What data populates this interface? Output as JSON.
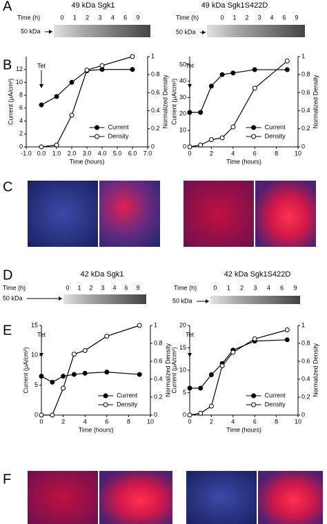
{
  "panel_labels": [
    "A",
    "B",
    "C",
    "D",
    "E",
    "F"
  ],
  "blots": [
    {
      "title": "49 kDa Sgk1",
      "time_label": "Time (h)",
      "times": [
        "0",
        "1",
        "2",
        "3",
        "4",
        "6",
        "9"
      ],
      "marker": "50 kDa"
    },
    {
      "title": "49 kDa Sgk1S422D",
      "time_label": "Time (h)",
      "times": [
        "0",
        "1",
        "2",
        "3",
        "4",
        "6",
        "9"
      ],
      "marker": "50 kDa"
    },
    {
      "title": "42 kDa Sgk1",
      "time_label": "Time (h)",
      "times": [
        "0",
        "1",
        "2",
        "3",
        "4",
        "6",
        "9"
      ],
      "marker": "50 kDa"
    },
    {
      "title": "42 kDa Sgk1S422D",
      "time_label": "Time (h)",
      "times": [
        "0",
        "1",
        "2",
        "3",
        "4",
        "6",
        "9"
      ],
      "marker": "50 kDa"
    }
  ],
  "chart_data": [
    {
      "type": "line",
      "xlabel": "Time (hours)",
      "ylabel": "Current (μA/cm²)",
      "y2label": "Normalized Density",
      "annotation": "Tet",
      "x": [
        0,
        1,
        2,
        3,
        4,
        6
      ],
      "xlim": [
        -1,
        7
      ],
      "xticks": [
        {
          "value": -1,
          "label": "-1.0"
        },
        {
          "value": 0,
          "label": "0.0"
        },
        {
          "value": 1,
          "label": "1.0"
        },
        {
          "value": 2,
          "label": "2.0"
        },
        {
          "value": 3,
          "label": "3.0"
        },
        {
          "value": 4,
          "label": "4.0"
        },
        {
          "value": 5,
          "label": "5.0"
        },
        {
          "value": 6,
          "label": "6.0"
        },
        {
          "value": 7,
          "label": "7.0"
        }
      ],
      "ylim": [
        0,
        14
      ],
      "yticks": [
        0,
        2,
        4,
        6,
        8,
        10,
        12
      ],
      "y2lim": [
        0,
        1
      ],
      "y2ticks": [
        0,
        0.2,
        0.4,
        0.6,
        0.8,
        1
      ],
      "series": [
        {
          "name": "Current",
          "color": "#000000",
          "marker": "filled",
          "values": [
            6.5,
            7.8,
            10,
            11.8,
            12,
            12
          ]
        },
        {
          "name": "Density",
          "color": "#000000",
          "marker": "open",
          "axis": "y2",
          "values": [
            0,
            0.02,
            0.35,
            0.85,
            0.9,
            1
          ]
        }
      ]
    },
    {
      "type": "line",
      "xlabel": "Time (hours)",
      "ylabel": "Current (μA/cm²)",
      "y2label": "Normalized Density",
      "annotation": "Tet",
      "x": [
        0,
        1,
        2,
        3,
        4,
        6,
        9
      ],
      "xlim": [
        0,
        10
      ],
      "xticks": [
        0,
        2,
        4,
        6,
        8,
        10
      ],
      "ylim": [
        0,
        55
      ],
      "yticks": [
        0,
        10,
        20,
        30,
        40,
        50
      ],
      "y2lim": [
        0,
        1
      ],
      "y2ticks": [
        0,
        0.2,
        0.4,
        0.6,
        0.8,
        1
      ],
      "series": [
        {
          "name": "Current",
          "color": "#000000",
          "marker": "filled",
          "values": [
            21,
            21,
            37,
            44,
            45,
            47,
            47
          ]
        },
        {
          "name": "Density",
          "color": "#000000",
          "marker": "open",
          "axis": "y2",
          "values": [
            0,
            0.02,
            0.08,
            0.1,
            0.22,
            0.65,
            0.95
          ]
        }
      ]
    },
    {
      "type": "line",
      "xlabel": "Time (hours)",
      "ylabel": "Current (μA/cm²)",
      "y2label": "Normalized Density",
      "annotation": "Tet",
      "x": [
        0,
        1,
        2,
        3,
        4,
        6,
        9
      ],
      "xlim": [
        0,
        10
      ],
      "xticks": [
        0,
        2,
        4,
        6,
        8,
        10
      ],
      "ylim": [
        0,
        15
      ],
      "yticks": [
        0,
        5,
        10,
        15
      ],
      "y2lim": [
        0,
        1
      ],
      "y2ticks": [
        0,
        0.2,
        0.4,
        0.6,
        0.8,
        1
      ],
      "series": [
        {
          "name": "Current",
          "color": "#000000",
          "marker": "filled",
          "values": [
            6.5,
            5.5,
            6.5,
            6.8,
            7,
            7.2,
            6.8
          ]
        },
        {
          "name": "Density",
          "color": "#000000",
          "marker": "open",
          "axis": "y2",
          "values": [
            0,
            0,
            0.3,
            0.68,
            0.72,
            0.88,
            1
          ]
        }
      ]
    },
    {
      "type": "line",
      "xlabel": "Time (hours)",
      "ylabel": "Current (μA/cm²)",
      "y2label": "Normalized Density",
      "annotation": "Tet",
      "x": [
        0,
        1,
        2,
        3,
        4,
        6,
        9
      ],
      "xlim": [
        0,
        10
      ],
      "xticks": [
        0,
        2,
        4,
        6,
        8,
        10
      ],
      "ylim": [
        0,
        20
      ],
      "yticks": [
        0,
        5,
        10,
        15,
        20
      ],
      "y2lim": [
        0,
        1
      ],
      "y2ticks": [
        0,
        0.2,
        0.4,
        0.6,
        0.8,
        1
      ],
      "series": [
        {
          "name": "Current",
          "color": "#000000",
          "marker": "filled",
          "values": [
            6,
            6,
            9,
            11.5,
            14.5,
            16.5,
            16.8
          ]
        },
        {
          "name": "Density",
          "color": "#000000",
          "marker": "open",
          "axis": "y2",
          "values": [
            0,
            0.02,
            0.1,
            0.55,
            0.7,
            0.85,
            0.95
          ]
        }
      ]
    }
  ]
}
